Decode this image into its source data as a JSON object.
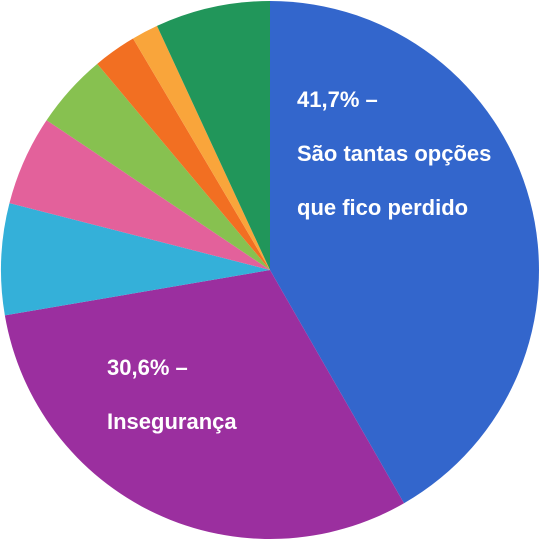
{
  "chart_data": {
    "type": "pie",
    "categories": [
      "São tantas opções que fico perdido",
      "Insegurança",
      null,
      null,
      null,
      null,
      null,
      null
    ],
    "values": [
      41.7,
      30.6,
      6.7,
      5.4,
      4.5,
      2.6,
      1.6,
      6.9
    ],
    "value_labels": [
      "41,7% –",
      "30,6% –",
      null,
      null,
      null,
      null,
      null,
      null
    ],
    "colors": [
      "#3366cc",
      "#9b2f9f",
      "#34b0d9",
      "#e3619b",
      "#87c150",
      "#f26f22",
      "#f9a53b",
      "#21965a"
    ]
  }
}
